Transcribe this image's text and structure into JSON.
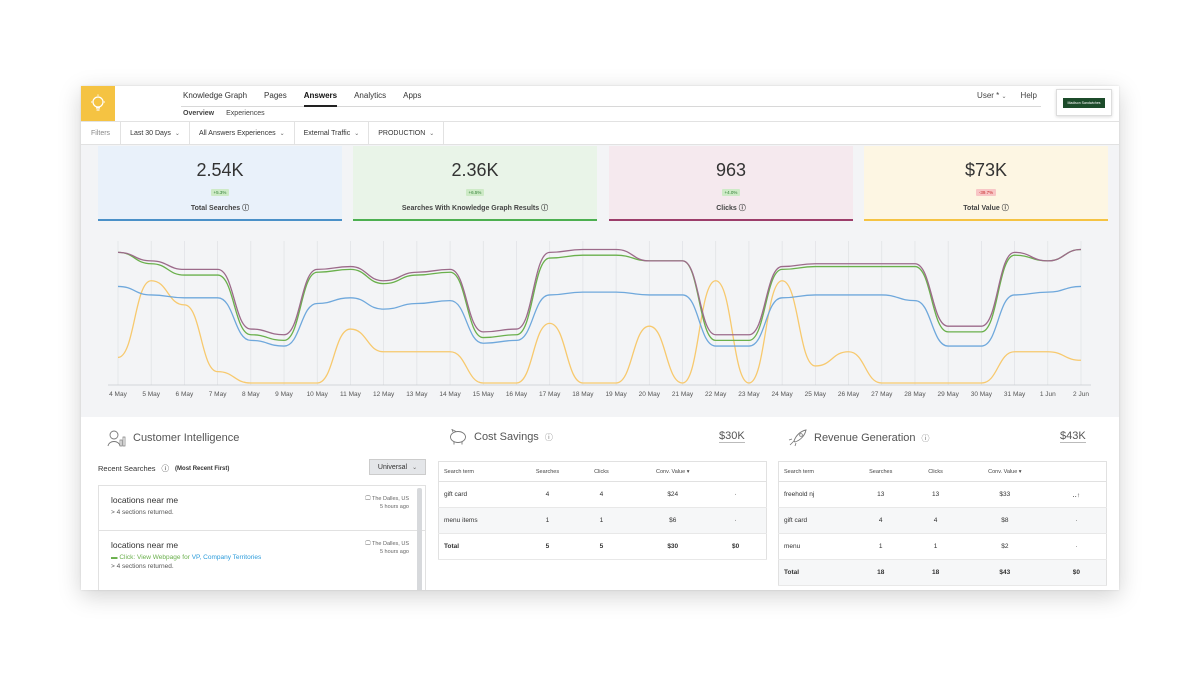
{
  "nav": {
    "items": [
      "Knowledge Graph",
      "Pages",
      "Answers",
      "Analytics",
      "Apps"
    ],
    "active": "Answers",
    "sub_items": [
      "Overview",
      "Experiences"
    ],
    "user": "User *",
    "help": "Help",
    "brand": "Madison Sandwiches"
  },
  "filters": {
    "label": "Filters",
    "items": [
      "Last 30 Days",
      "All Answers Experiences",
      "External Traffic",
      "PRODUCTION"
    ]
  },
  "stats": [
    {
      "value": "2.54K",
      "delta": "+5.3%",
      "label": "Total Searches",
      "color": "#4a90c8",
      "bg": "#e9f1fa",
      "delta_bg": "#cdeac6",
      "delta_color": "#2e7d32"
    },
    {
      "value": "2.36K",
      "delta": "+6.5%",
      "label": "Searches With Knowledge Graph Results",
      "color": "#4caf50",
      "bg": "#e9f4e8",
      "delta_bg": "#cdeac6",
      "delta_color": "#2e7d32"
    },
    {
      "value": "963",
      "delta": "+4.0%",
      "label": "Clicks",
      "color": "#9c3d6a",
      "bg": "#f5e9ee",
      "delta_bg": "#cdeac6",
      "delta_color": "#2e7d32"
    },
    {
      "value": "$73K",
      "delta": "-39.7%",
      "label": "Total Value",
      "color": "#f5c342",
      "bg": "#fdf6e3",
      "delta_bg": "#f8c6c6",
      "delta_color": "#c62828"
    }
  ],
  "chart_data": {
    "type": "line",
    "categories": [
      "4 May",
      "5 May",
      "6 May",
      "7 May",
      "8 May",
      "9 May",
      "10 May",
      "11 May",
      "12 May",
      "13 May",
      "14 May",
      "15 May",
      "16 May",
      "17 May",
      "18 May",
      "19 May",
      "20 May",
      "21 May",
      "22 May",
      "23 May",
      "24 May",
      "25 May",
      "26 May",
      "27 May",
      "28 May",
      "29 May",
      "30 May",
      "31 May",
      "1 Jun",
      "2 Jun"
    ],
    "series": [
      {
        "color": "#9c6a8a",
        "values": [
          92,
          86,
          80,
          80,
          38,
          34,
          80,
          82,
          72,
          78,
          80,
          36,
          38,
          92,
          94,
          94,
          86,
          86,
          34,
          34,
          82,
          84,
          84,
          84,
          84,
          40,
          40,
          92,
          86,
          94
        ]
      },
      {
        "color": "#6ab04c",
        "values": [
          92,
          84,
          76,
          76,
          34,
          30,
          78,
          80,
          70,
          76,
          78,
          32,
          34,
          88,
          90,
          90,
          86,
          86,
          30,
          30,
          80,
          82,
          82,
          82,
          82,
          36,
          36,
          90,
          86,
          94
        ]
      },
      {
        "color": "#6fa8dc",
        "values": [
          68,
          62,
          60,
          60,
          30,
          26,
          56,
          60,
          52,
          56,
          58,
          28,
          30,
          62,
          64,
          64,
          62,
          62,
          26,
          26,
          60,
          62,
          62,
          62,
          58,
          26,
          26,
          62,
          64,
          68
        ]
      },
      {
        "color": "#f7c96e",
        "values": [
          18,
          72,
          55,
          8,
          0,
          0,
          0,
          38,
          22,
          22,
          22,
          0,
          0,
          42,
          0,
          0,
          40,
          0,
          72,
          0,
          72,
          12,
          22,
          0,
          0,
          0,
          0,
          22,
          22,
          16
        ]
      }
    ]
  },
  "customer_intelligence": {
    "title": "Customer Intelligence",
    "recent_label": "Recent Searches",
    "recent_sub": "(Most Recent First)",
    "filter": "Universal",
    "items": [
      {
        "query": "locations near me",
        "location": "The Dalles, US",
        "time": "5 hours ago",
        "detail": "> 4 sections returned."
      },
      {
        "query": "locations near me",
        "location": "The Dalles, US",
        "time": "5 hours ago",
        "click_prefix": "Click: View Webpage for",
        "click_link": "VP, Company Territories",
        "detail": "> 4 sections returned."
      }
    ]
  },
  "cost_savings": {
    "title": "Cost Savings",
    "value": "$30K",
    "headers": [
      "Search term",
      "Searches",
      "Clicks",
      "Conv. Value"
    ],
    "rows": [
      {
        "term": "gift card",
        "searches": "4",
        "clicks": "4",
        "value": "$24"
      },
      {
        "term": "menu items",
        "searches": "1",
        "clicks": "1",
        "value": "$6"
      }
    ],
    "total": {
      "term": "Total",
      "searches": "5",
      "clicks": "5",
      "value": "$30",
      "extra": "$0"
    }
  },
  "revenue_generation": {
    "title": "Revenue Generation",
    "value": "$43K",
    "headers": [
      "Search term",
      "Searches",
      "Clicks",
      "Conv. Value"
    ],
    "rows": [
      {
        "term": "freehold nj",
        "searches": "13",
        "clicks": "13",
        "value": "$33"
      },
      {
        "term": "gift card",
        "searches": "4",
        "clicks": "4",
        "value": "$8"
      },
      {
        "term": "menu",
        "searches": "1",
        "clicks": "1",
        "value": "$2"
      }
    ],
    "total": {
      "term": "Total",
      "searches": "18",
      "clicks": "18",
      "value": "$43",
      "extra": "$0"
    }
  }
}
